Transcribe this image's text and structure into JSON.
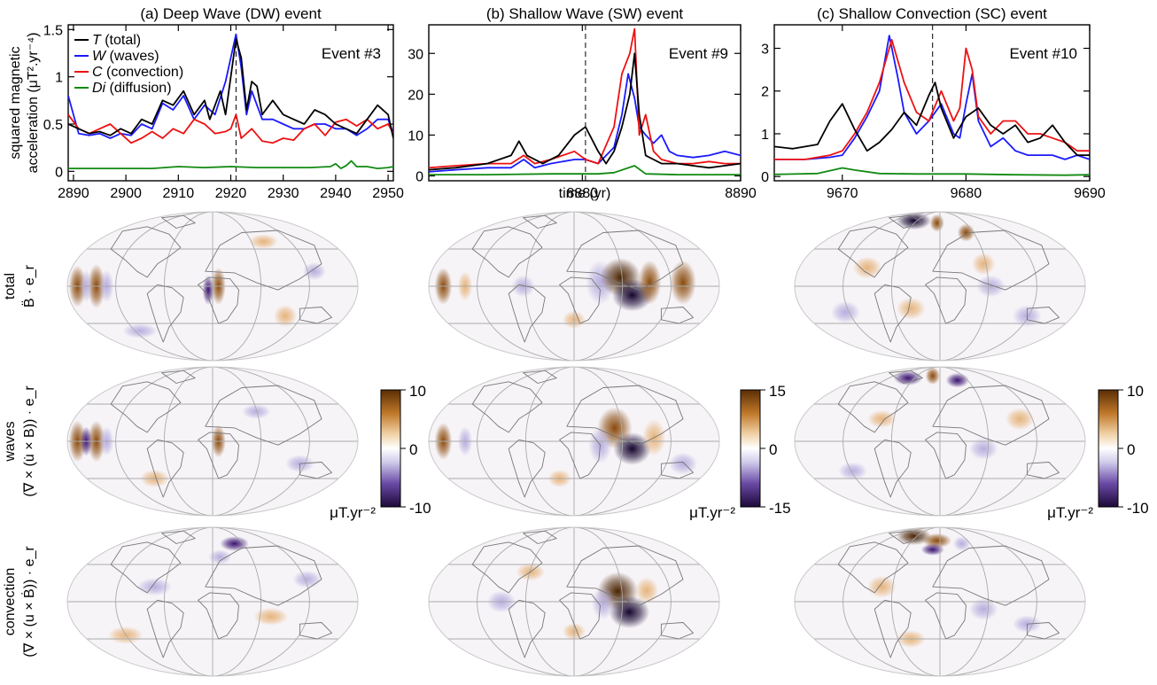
{
  "colors": {
    "total": "#000000",
    "waves": "#1a1aff",
    "convection": "#ee1111",
    "diffusion": "#128a12",
    "positive": "#7a3f08",
    "negative": "#2a0a5a"
  },
  "ylabel_line1": "squared magnetic",
  "ylabel_line2": "acceleration (μT².yr⁻⁴)",
  "xlabel": "time (yr)",
  "legend": [
    {
      "sym": "T",
      "desc": " (total)",
      "key": "total"
    },
    {
      "sym": "W",
      "desc": " (waves)",
      "key": "waves"
    },
    {
      "sym": "C",
      "desc": " (convection)",
      "key": "convection"
    },
    {
      "sym": "Di",
      "desc": " (diffusion)",
      "key": "diffusion"
    }
  ],
  "row_labels": [
    {
      "top": "total",
      "bottom": "B̈ · e_r"
    },
    {
      "top": "waves",
      "bottom": "(∇ × (u̇ × B)) · e_r"
    },
    {
      "top": "convection",
      "bottom": "(∇ × (u × Ḃ)) · e_r"
    }
  ],
  "colorbar_unit": "μT.yr⁻²",
  "colorbars": [
    {
      "max": "10",
      "mid": "0",
      "min": "-10"
    },
    {
      "max": "15",
      "mid": "0",
      "min": "-15"
    },
    {
      "max": "10",
      "mid": "0",
      "min": "-10"
    }
  ],
  "chart_data": [
    {
      "type": "line",
      "title": "(a) Deep Wave (DW) event",
      "event": "Event #3",
      "xlim": [
        2889,
        2951
      ],
      "ylim": [
        -0.1,
        1.55
      ],
      "xticks": [
        2890,
        2900,
        2910,
        2920,
        2930,
        2940,
        2950
      ],
      "yticks": [
        0,
        0.5,
        1,
        1.5
      ],
      "ytick_labels": [
        "0",
        "0.5",
        "1",
        "1.5"
      ],
      "event_time": 2921,
      "series": [
        {
          "name": "T (total)",
          "key": "total",
          "x": [
            2889,
            2891,
            2893,
            2895,
            2897,
            2899,
            2901,
            2903,
            2905,
            2907,
            2909,
            2911,
            2913,
            2915,
            2916,
            2918,
            2919,
            2920,
            2921,
            2922,
            2923,
            2924,
            2925,
            2926,
            2928,
            2930,
            2932,
            2934,
            2936,
            2938,
            2940,
            2942,
            2944,
            2946,
            2948,
            2950,
            2951
          ],
          "y": [
            0.5,
            0.45,
            0.4,
            0.42,
            0.38,
            0.45,
            0.4,
            0.55,
            0.5,
            0.75,
            0.7,
            0.85,
            0.6,
            0.75,
            0.55,
            0.85,
            0.6,
            1.0,
            1.4,
            1.2,
            0.65,
            0.95,
            0.9,
            0.6,
            0.75,
            0.6,
            0.55,
            0.5,
            0.65,
            0.6,
            0.5,
            0.45,
            0.4,
            0.55,
            0.7,
            0.6,
            0.35
          ]
        },
        {
          "name": "W (waves)",
          "key": "waves",
          "x": [
            2889,
            2891,
            2893,
            2895,
            2897,
            2899,
            2901,
            2903,
            2905,
            2907,
            2909,
            2911,
            2913,
            2915,
            2917,
            2919,
            2920,
            2921,
            2922,
            2923,
            2924,
            2926,
            2928,
            2930,
            2932,
            2934,
            2936,
            2938,
            2940,
            2942,
            2944,
            2946,
            2948,
            2950,
            2951
          ],
          "y": [
            0.8,
            0.4,
            0.38,
            0.4,
            0.35,
            0.4,
            0.38,
            0.5,
            0.45,
            0.72,
            0.65,
            0.8,
            0.55,
            0.7,
            0.6,
            0.95,
            1.2,
            1.45,
            1.1,
            0.6,
            0.85,
            0.55,
            0.55,
            0.5,
            0.45,
            0.45,
            0.5,
            0.5,
            0.45,
            0.45,
            0.38,
            0.45,
            0.55,
            0.55,
            0.4
          ]
        },
        {
          "name": "C (convection)",
          "key": "convection",
          "x": [
            2889,
            2891,
            2893,
            2895,
            2897,
            2899,
            2901,
            2903,
            2905,
            2907,
            2909,
            2911,
            2913,
            2915,
            2917,
            2919,
            2920,
            2921,
            2922,
            2924,
            2926,
            2928,
            2930,
            2932,
            2934,
            2936,
            2938,
            2940,
            2942,
            2944,
            2946,
            2948,
            2950,
            2951
          ],
          "y": [
            0.6,
            0.45,
            0.4,
            0.45,
            0.5,
            0.4,
            0.3,
            0.35,
            0.42,
            0.35,
            0.45,
            0.4,
            0.55,
            0.5,
            0.4,
            0.42,
            0.45,
            0.6,
            0.35,
            0.45,
            0.32,
            0.3,
            0.35,
            0.33,
            0.45,
            0.5,
            0.38,
            0.52,
            0.55,
            0.48,
            0.55,
            0.45,
            0.5,
            0.4
          ]
        },
        {
          "name": "Di (diffusion)",
          "key": "diffusion",
          "x": [
            2889,
            2895,
            2900,
            2905,
            2910,
            2915,
            2920,
            2925,
            2930,
            2935,
            2939,
            2940,
            2941,
            2942,
            2943,
            2944,
            2946,
            2948,
            2950,
            2951
          ],
          "y": [
            0.03,
            0.03,
            0.03,
            0.03,
            0.05,
            0.04,
            0.05,
            0.04,
            0.04,
            0.04,
            0.05,
            0.08,
            0.03,
            0.06,
            0.11,
            0.05,
            0.05,
            0.03,
            0.04,
            0.05
          ]
        }
      ]
    },
    {
      "type": "line",
      "title": "(b) Shallow Wave (SW) event",
      "event": "Event #9",
      "xlim": [
        8870.3,
        8890
      ],
      "ylim": [
        -1.2,
        37
      ],
      "xticks": [
        8880,
        8890
      ],
      "yticks": [
        0,
        10,
        20,
        30
      ],
      "ytick_labels": [
        "0",
        "10",
        "20",
        "30"
      ],
      "event_time": 8880.2,
      "series": [
        {
          "name": "T (total)",
          "key": "total",
          "x": [
            8870.3,
            8872,
            8874,
            8875.5,
            8876,
            8876.5,
            8877.5,
            8878.5,
            8879.5,
            8880.2,
            8881,
            8881.5,
            8882,
            8882.5,
            8883,
            8883.3,
            8883.6,
            8884,
            8884.5,
            8885,
            8886,
            8887,
            8888,
            8889,
            8890
          ],
          "y": [
            1.5,
            2,
            3,
            5,
            8.5,
            5,
            3,
            5,
            10,
            12,
            6,
            3,
            6,
            12,
            20,
            30,
            15,
            5,
            4,
            3,
            3,
            2.5,
            2,
            2.5,
            3
          ]
        },
        {
          "name": "W (waves)",
          "key": "waves",
          "x": [
            8870.3,
            8872,
            8874,
            8875.5,
            8876.3,
            8877,
            8878,
            8879.5,
            8880.2,
            8881,
            8882,
            8882.5,
            8882.9,
            8883.3,
            8883.6,
            8884,
            8884.5,
            8885,
            8885.5,
            8886,
            8887,
            8888,
            8889,
            8890
          ],
          "y": [
            1,
            1.5,
            2,
            2,
            4,
            2,
            3,
            4,
            4,
            3,
            7,
            15,
            25,
            19,
            12,
            10,
            8,
            10,
            6,
            5,
            4.5,
            5,
            6,
            5
          ]
        },
        {
          "name": "C (convection)",
          "key": "convection",
          "x": [
            8870.3,
            8872,
            8874,
            8875.5,
            8876.3,
            8877,
            8878,
            8879.5,
            8880.2,
            8881,
            8882,
            8882.5,
            8883,
            8883.3,
            8883.6,
            8884,
            8884.5,
            8885,
            8886,
            8887,
            8888,
            8889,
            8890
          ],
          "y": [
            2,
            2.5,
            3,
            3,
            5,
            3,
            4,
            6,
            4,
            3,
            12,
            25,
            30,
            36,
            10,
            15,
            6,
            4,
            3,
            3,
            3.5,
            3,
            3
          ]
        },
        {
          "name": "Di (diffusion)",
          "key": "diffusion",
          "x": [
            8870.3,
            8874,
            8878,
            8880,
            8881,
            8882,
            8883.3,
            8884,
            8886,
            8888,
            8890
          ],
          "y": [
            0.3,
            0.3,
            0.5,
            0.5,
            0.5,
            0.8,
            2.5,
            0.5,
            0.3,
            0.3,
            0.3
          ]
        }
      ]
    },
    {
      "type": "line",
      "title": "(c) Shallow Convection (SC) event",
      "event": "Event #10",
      "xlim": [
        9664.5,
        9690
      ],
      "ylim": [
        -0.1,
        3.55
      ],
      "xticks": [
        9670,
        9680,
        9690
      ],
      "yticks": [
        0,
        1,
        2,
        3
      ],
      "ytick_labels": [
        "0",
        "1",
        "2",
        "3"
      ],
      "event_time": 9677.3,
      "series": [
        {
          "name": "T (total)",
          "key": "total",
          "x": [
            9664.5,
            9666,
            9668,
            9669,
            9670,
            9671,
            9672,
            9673,
            9674,
            9675,
            9676,
            9677,
            9677.5,
            9678,
            9679,
            9680,
            9681,
            9682,
            9683,
            9684,
            9685,
            9686,
            9687,
            9688,
            9689,
            9690
          ],
          "y": [
            0.7,
            0.65,
            0.75,
            1.3,
            1.7,
            1.1,
            0.6,
            0.8,
            1.1,
            1.5,
            1.2,
            1.9,
            2.2,
            1.6,
            0.9,
            1.4,
            1.6,
            1.2,
            1.0,
            1.2,
            0.8,
            0.9,
            1.2,
            0.8,
            0.5,
            0.5
          ]
        },
        {
          "name": "W (waves)",
          "key": "waves",
          "x": [
            9664.5,
            9667,
            9669,
            9670,
            9671,
            9672,
            9673,
            9673.8,
            9674.5,
            9675,
            9676,
            9677,
            9678,
            9679,
            9679.5,
            9680,
            9680.5,
            9681,
            9682,
            9683,
            9684,
            9685,
            9686,
            9687,
            9688,
            9689,
            9690
          ],
          "y": [
            0.4,
            0.4,
            0.45,
            0.5,
            0.9,
            1.4,
            2.0,
            3.3,
            2.3,
            1.5,
            1.0,
            1.3,
            1.7,
            1.0,
            0.9,
            1.7,
            2.4,
            1.3,
            0.7,
            0.9,
            0.6,
            0.5,
            0.5,
            0.5,
            0.4,
            0.5,
            0.4
          ]
        },
        {
          "name": "C (convection)",
          "key": "convection",
          "x": [
            9664.5,
            9667,
            9669,
            9670,
            9671,
            9672,
            9673,
            9674,
            9675,
            9676,
            9677,
            9678,
            9679,
            9679.5,
            9680,
            9680.5,
            9681,
            9682,
            9683,
            9684,
            9685,
            9686,
            9687,
            9688,
            9689,
            9690
          ],
          "y": [
            0.4,
            0.4,
            0.5,
            0.6,
            1.0,
            1.5,
            2.2,
            3.2,
            2.2,
            1.5,
            1.3,
            2.0,
            1.3,
            1.6,
            3.0,
            2.5,
            1.4,
            1.0,
            1.3,
            1.3,
            1.0,
            1.0,
            0.9,
            0.8,
            0.6,
            0.6
          ]
        },
        {
          "name": "Di (diffusion)",
          "key": "diffusion",
          "x": [
            9664.5,
            9668,
            9670,
            9671,
            9673,
            9676,
            9680,
            9684,
            9688,
            9690
          ],
          "y": [
            0.05,
            0.07,
            0.2,
            0.15,
            0.07,
            0.06,
            0.06,
            0.04,
            0.03,
            0.04
          ]
        }
      ]
    }
  ]
}
